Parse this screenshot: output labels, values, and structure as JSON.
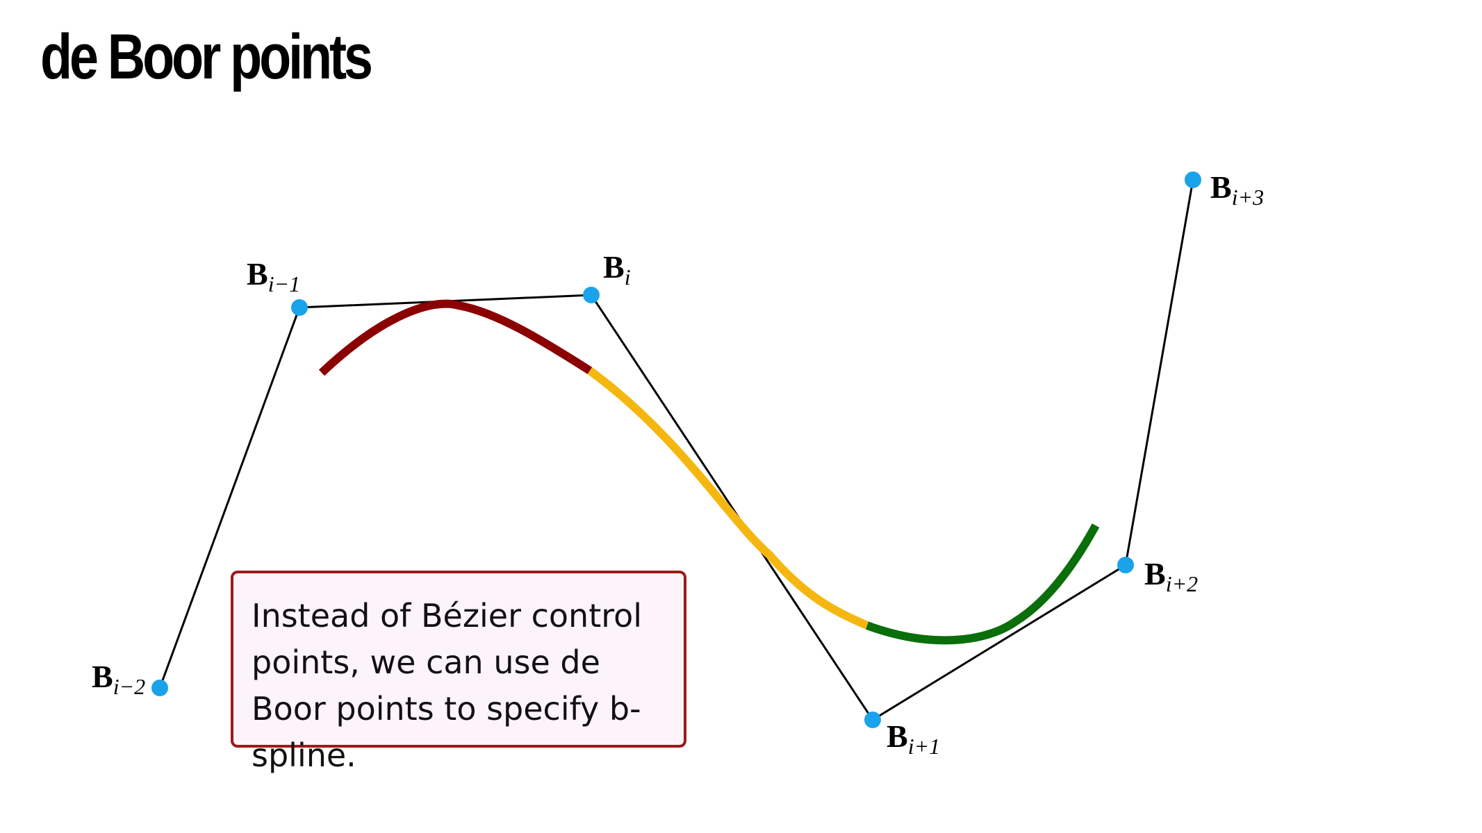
{
  "title": "de Boor points",
  "note": "Instead of Bézier control points, we can use de Boor points to specify b-spline.",
  "points": [
    {
      "id": "b-i-minus-2",
      "main": "B",
      "sub": "i−2"
    },
    {
      "id": "b-i-minus-1",
      "main": "B",
      "sub": "i−1"
    },
    {
      "id": "b-i",
      "main": "B",
      "sub": "i"
    },
    {
      "id": "b-i-plus-1",
      "main": "B",
      "sub": "i+1"
    },
    {
      "id": "b-i-plus-2",
      "main": "B",
      "sub": "i+2"
    },
    {
      "id": "b-i-plus-3",
      "main": "B",
      "sub": "i+3"
    }
  ],
  "colors": {
    "point": "#1aa3ea",
    "polygon": "#000000",
    "segment_1": "#8b0000",
    "segment_2": "#f5b70f",
    "segment_3": "#0a6e0a",
    "note_border": "#9b1b1b",
    "note_fill": "#fdf4fb"
  }
}
